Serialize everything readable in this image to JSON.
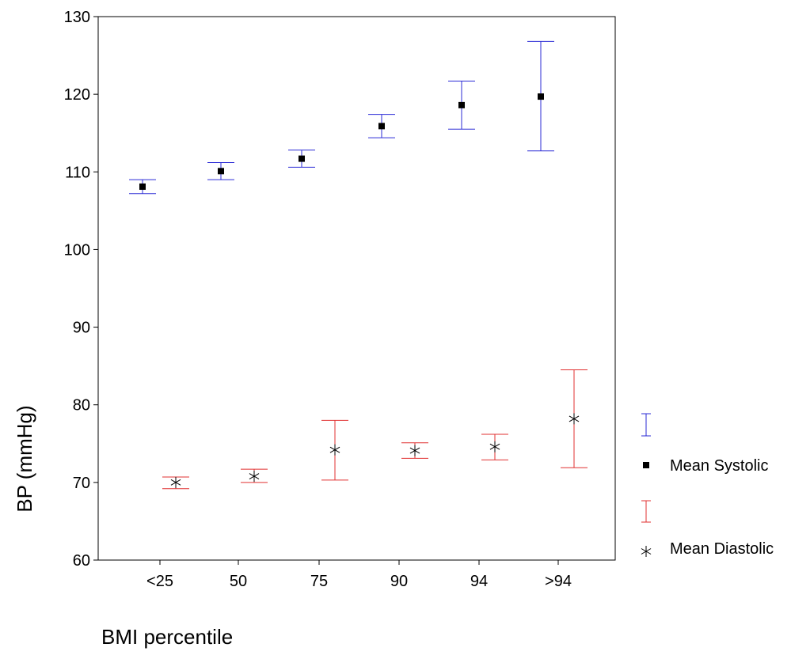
{
  "chart_data": {
    "type": "scatter",
    "title": "",
    "xlabel": "BMI percentile",
    "ylabel": "BP (mmHg)",
    "categories": [
      "<25",
      "50",
      "75",
      "90",
      "94",
      ">94"
    ],
    "ylim": [
      60,
      130
    ],
    "yticks": [
      60,
      70,
      80,
      90,
      100,
      110,
      120,
      130
    ],
    "grid": false,
    "legend_position": "right",
    "series": [
      {
        "name": "Mean Systolic",
        "marker": "square",
        "errorbar_color": "#2b2bd6",
        "values": [
          108.1,
          110.1,
          111.7,
          115.9,
          118.6,
          119.7
        ],
        "lower": [
          107.2,
          109.0,
          110.6,
          114.4,
          115.5,
          112.7
        ],
        "upper": [
          109.0,
          111.2,
          112.8,
          117.4,
          121.7,
          126.8
        ]
      },
      {
        "name": "Mean Diastolic",
        "marker": "asterisk",
        "errorbar_color": "#e03030",
        "values": [
          70.0,
          70.8,
          74.2,
          74.1,
          74.6,
          78.2
        ],
        "lower": [
          69.2,
          70.0,
          70.3,
          73.1,
          72.9,
          71.9
        ],
        "upper": [
          70.7,
          71.7,
          78.0,
          75.1,
          76.2,
          84.5
        ]
      }
    ]
  }
}
